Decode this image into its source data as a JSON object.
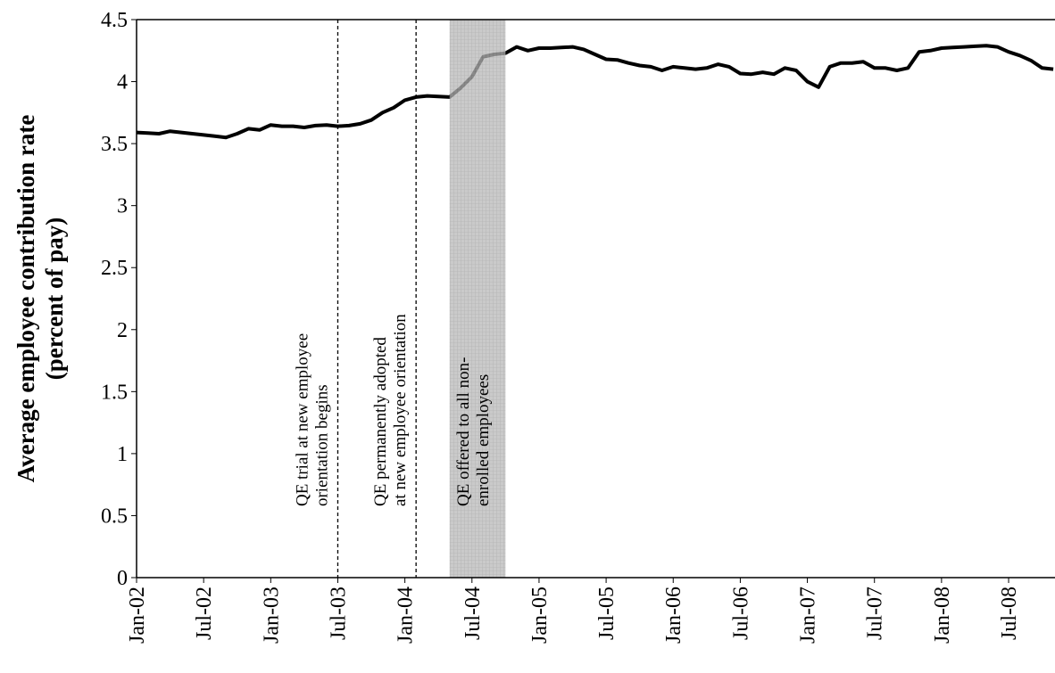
{
  "chart_data": {
    "type": "line",
    "y_label": [
      "Average employee contribution rate",
      "(percent of pay)"
    ],
    "categories": [
      "Jan-02",
      null,
      null,
      null,
      null,
      null,
      "Jul-02",
      null,
      null,
      null,
      null,
      null,
      "Jan-03",
      null,
      null,
      null,
      null,
      null,
      "Jul-03",
      null,
      null,
      null,
      null,
      null,
      "Jan-04",
      null,
      null,
      null,
      null,
      null,
      "Jul-04",
      null,
      null,
      null,
      null,
      null,
      "Jan-05",
      null,
      null,
      null,
      null,
      null,
      "Jul-05",
      null,
      null,
      null,
      null,
      null,
      "Jan-06",
      null,
      null,
      null,
      null,
      null,
      "Jul-06",
      null,
      null,
      null,
      null,
      null,
      "Jan-07",
      null,
      null,
      null,
      null,
      null,
      "Jul-07",
      null,
      null,
      null,
      null,
      null,
      "Jan-08",
      null,
      null,
      null,
      null,
      null,
      "Jul-08",
      null,
      null,
      null,
      null
    ],
    "values": [
      3.59,
      3.585,
      3.58,
      3.6,
      3.59,
      3.58,
      3.57,
      3.56,
      3.55,
      3.58,
      3.62,
      3.61,
      3.65,
      3.64,
      3.64,
      3.63,
      3.645,
      3.65,
      3.64,
      3.645,
      3.66,
      3.69,
      3.75,
      3.79,
      3.85,
      3.875,
      3.885,
      3.88,
      3.875,
      3.95,
      4.04,
      4.2,
      4.22,
      4.23,
      4.28,
      4.25,
      4.27,
      4.27,
      4.275,
      4.28,
      4.26,
      4.22,
      4.18,
      4.175,
      4.15,
      4.13,
      4.12,
      4.09,
      4.12,
      4.11,
      4.1,
      4.11,
      4.14,
      4.12,
      4.065,
      4.06,
      4.075,
      4.06,
      4.11,
      4.09,
      4.0,
      3.955,
      4.12,
      4.15,
      4.15,
      4.16,
      4.11,
      4.11,
      4.09,
      4.11,
      4.24,
      4.25,
      4.27,
      4.275,
      4.28,
      4.285,
      4.29,
      4.28,
      4.24,
      4.21,
      4.17,
      4.11,
      4.1
    ],
    "color": "#000000",
    "ylim": [
      0,
      4.5
    ],
    "yticks": [
      0,
      0.5,
      1,
      1.5,
      2,
      2.5,
      3,
      3.5,
      4,
      4.5
    ],
    "annotations": [
      {
        "lines": [
          "QE trial at new employee",
          "orientation begins"
        ],
        "at": 18
      },
      {
        "lines": [
          "QE permanently adopted",
          "at new employee orientation"
        ],
        "at": 25
      },
      {
        "lines": [
          "QE offered to all non-",
          "enrolled employees"
        ],
        "span": [
          28,
          33
        ]
      }
    ]
  }
}
